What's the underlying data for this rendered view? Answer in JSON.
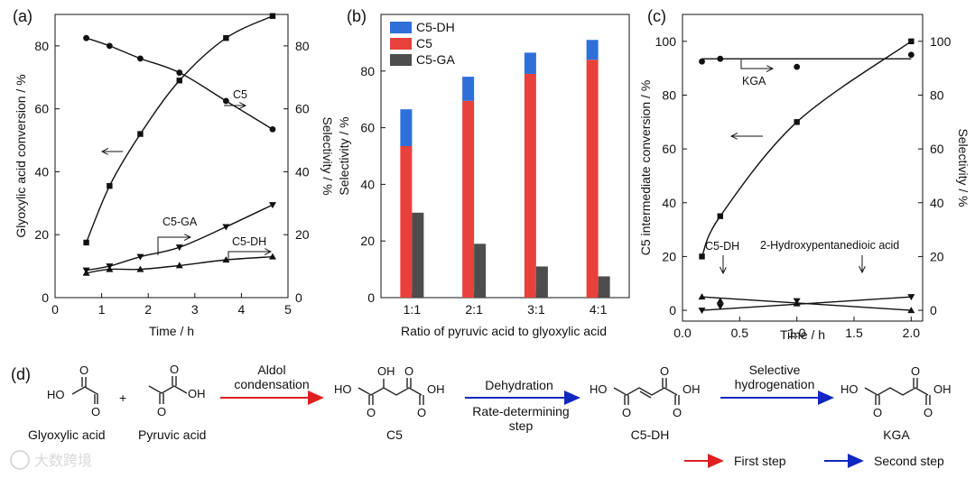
{
  "panels": {
    "a": "(a)",
    "b": "(b)",
    "c": "(c)",
    "d": "(d)"
  },
  "chart_data": [
    {
      "id": "a",
      "type": "line",
      "xlabel": "Time / h",
      "ylabel": "Glyoxylic acid conversion / %",
      "y2label": "Selectivity / %",
      "xlim": [
        0,
        5
      ],
      "ylim": [
        0,
        90
      ],
      "y2lim": [
        0,
        90
      ],
      "xticks": [
        0,
        1,
        2,
        3,
        4,
        5
      ],
      "yticks": [
        0,
        20,
        40,
        60,
        80
      ],
      "series": [
        {
          "name": "conversion",
          "axis": "left",
          "marker": "square",
          "x": [
            0.67,
            1.17,
            1.83,
            2.67,
            3.67,
            4.67
          ],
          "y": [
            17.5,
            35.5,
            52,
            69,
            82.5,
            89.5
          ]
        },
        {
          "name": "C5",
          "axis": "right",
          "marker": "circle",
          "x": [
            0.67,
            1.17,
            1.83,
            2.67,
            3.67,
            4.67
          ],
          "y": [
            82.5,
            80,
            76,
            71.5,
            62.5,
            53.5
          ]
        },
        {
          "name": "C5-GA",
          "axis": "right",
          "marker": "triangle-down",
          "x": [
            0.67,
            1.17,
            1.83,
            2.67,
            3.67,
            4.67
          ],
          "y": [
            8.7,
            10,
            13,
            16,
            22.5,
            29.5
          ]
        },
        {
          "name": "C5-DH",
          "axis": "right",
          "marker": "triangle-up",
          "x": [
            0.67,
            1.17,
            1.83,
            2.67,
            3.67,
            4.67
          ],
          "y": [
            7.8,
            9,
            9,
            10.2,
            12,
            13
          ]
        }
      ],
      "annotations": {
        "c5": "C5",
        "c5ga": "C5-GA",
        "c5dh": "C5-DH"
      }
    },
    {
      "id": "b",
      "type": "bar",
      "xlabel": "Ratio of pyruvic acid to glyoxylic acid",
      "ylabel": "Selectivity / %",
      "ylim": [
        0,
        100
      ],
      "yticks": [
        0,
        20,
        40,
        60,
        80
      ],
      "categories": [
        "1:1",
        "2:1",
        "3:1",
        "4:1"
      ],
      "series": [
        {
          "name": "C5",
          "color": "#e8413c",
          "values": [
            53.5,
            69.5,
            79,
            84
          ]
        },
        {
          "name": "C5-DH",
          "color": "#2f6fd8",
          "values": [
            13,
            8.5,
            7.5,
            7
          ]
        },
        {
          "name": "C5-GA",
          "color": "#4d4d4d",
          "values": [
            30,
            19,
            11,
            7.5
          ]
        }
      ],
      "legend": [
        "C5-DH",
        "C5",
        "C5-GA"
      ],
      "legend_position": "top-left"
    },
    {
      "id": "c",
      "type": "line",
      "xlabel": "Time / h",
      "ylabel": "C5 intermediate conversion / %",
      "y2label": "Selectivity / %",
      "xlim": [
        0,
        2.1
      ],
      "ylim": [
        -4,
        110
      ],
      "y2lim": [
        -4,
        110
      ],
      "xticks": [
        0.0,
        0.5,
        1.0,
        1.5,
        2.0
      ],
      "xticklabels": [
        "0.0",
        "0.5",
        "1.0",
        "1.5",
        "2.0"
      ],
      "yticks": [
        0,
        20,
        40,
        60,
        80,
        100
      ],
      "series": [
        {
          "name": "conversion",
          "axis": "left",
          "marker": "square",
          "x": [
            0.17,
            0.33,
            1.0,
            2.0
          ],
          "y": [
            20,
            35,
            70,
            100
          ]
        },
        {
          "name": "KGA",
          "axis": "right",
          "marker": "circle",
          "x": [
            0.17,
            0.33,
            1.0,
            2.0
          ],
          "y": [
            92.5,
            93.5,
            90.5,
            95
          ]
        },
        {
          "name": "C5-DH",
          "axis": "right",
          "marker": "triangle-up",
          "x": [
            0.17,
            0.33,
            1.0,
            2.0
          ],
          "y": [
            5,
            3.5,
            2.5,
            0
          ]
        },
        {
          "name": "2-Hydroxypentanedioic acid",
          "axis": "right",
          "marker": "triangle-down",
          "x": [
            0.17,
            0.33,
            1.0,
            2.0
          ],
          "y": [
            0,
            1.5,
            3.5,
            5
          ]
        }
      ],
      "annotations": {
        "kga": "KGA",
        "c5dh": "C5-DH",
        "hpa": "2-Hydroxypentanedioic acid"
      }
    }
  ],
  "scheme": {
    "glyoxylic": "Glyoxylic acid",
    "plus": "+",
    "pyruvic": "Pyruvic acid",
    "step1_top": "Aldol",
    "step1_bottom": "condensation",
    "c5": "C5",
    "step2_top": "Dehydration",
    "step2_bottom1": "Rate-determining",
    "step2_bottom2": "step",
    "c5dh": "C5-DH",
    "step3_top1": "Selective",
    "step3_top2": "hydrogenation",
    "kga": "KGA",
    "ho": "HO",
    "oh": "OH",
    "o": "O",
    "first_step": "First step",
    "second_step": "Second step",
    "red": "#e02020",
    "blue": "#1028c0"
  },
  "watermark": "大数跨境"
}
